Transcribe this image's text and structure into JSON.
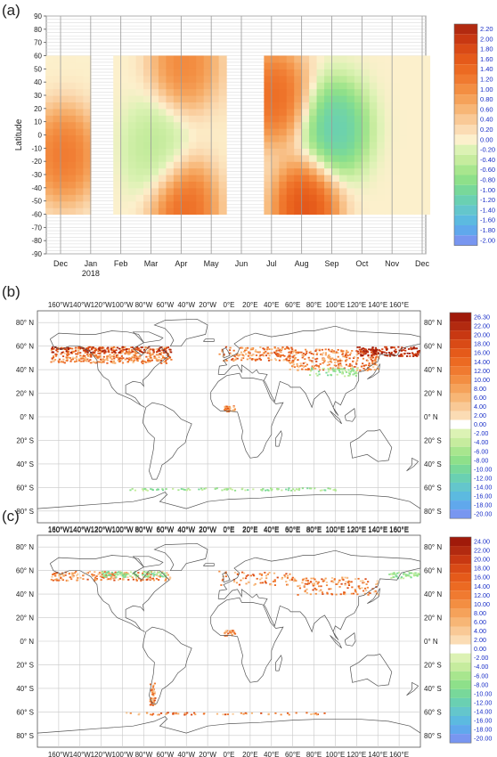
{
  "figure": {
    "panels": [
      {
        "label": "(a)"
      },
      {
        "label": "(b)"
      },
      {
        "label": "(c)"
      }
    ]
  },
  "chart_data": [
    {
      "type": "heatmap",
      "panel": "(a)",
      "ylabel": "Latitude",
      "xlabel": "",
      "x_ticks": [
        "Dec",
        "Jan",
        "Feb",
        "Mar",
        "Apr",
        "May",
        "Jun",
        "Jul",
        "Aug",
        "Sep",
        "Oct",
        "Nov",
        "Dec"
      ],
      "x_year_label": "2018",
      "y_ticks": [
        90,
        80,
        70,
        60,
        50,
        40,
        30,
        20,
        10,
        0,
        -10,
        -20,
        -30,
        -40,
        -50,
        -60,
        -70,
        -80,
        -90
      ],
      "ylim": [
        -90,
        90
      ],
      "data_lat_range": [
        -60,
        60
      ],
      "no_data_months": [
        "Jun"
      ],
      "colorbar": {
        "labels": [
          "2.20",
          "2.00",
          "1.80",
          "1.60",
          "1.40",
          "1.20",
          "1.00",
          "0.80",
          "0.60",
          "0.40",
          "0.20",
          "0.00",
          "-0.20",
          "-0.40",
          "-0.60",
          "-0.80",
          "-1.00",
          "-1.20",
          "-1.40",
          "-1.60",
          "-1.80",
          "-2.00"
        ],
        "colors": [
          "#b22a10",
          "#c83812",
          "#d94a16",
          "#e55a1a",
          "#ec6a22",
          "#f07a30",
          "#f38e42",
          "#f5a25a",
          "#f7b676",
          "#f9c996",
          "#fbdcb4",
          "#fcf0cc",
          "#dcf2b4",
          "#c6ec9e",
          "#a8e68e",
          "#8ee08a",
          "#78d89a",
          "#6ad0b2",
          "#64c6cc",
          "#5cbae0",
          "#60a8ec",
          "#7896f0"
        ]
      },
      "features": [
        {
          "month": "Dec",
          "lat": -15,
          "value": 1.6
        },
        {
          "month": "Jul",
          "lat": 30,
          "value": 1.8
        },
        {
          "month": "Aug",
          "lat": -55,
          "value": 2.2
        },
        {
          "month": "Sep",
          "lat": 5,
          "value": -1.6
        },
        {
          "month": "Mar",
          "lat": -10,
          "value": -0.6
        },
        {
          "month": "Apr",
          "lat": 55,
          "value": 1.4
        },
        {
          "month": "Apr",
          "lat": -55,
          "value": 1.8
        }
      ]
    },
    {
      "type": "heatmap",
      "panel": "(b)",
      "lon_ticks": [
        "160°W",
        "140°W",
        "120°W",
        "100°W",
        "80°W",
        "60°W",
        "40°W",
        "20°W",
        "0°E",
        "20°E",
        "40°E",
        "60°E",
        "80°E",
        "100°E",
        "120°E",
        "140°E",
        "160°E"
      ],
      "lat_ticks": [
        "80° N",
        "60° N",
        "40° N",
        "20° N",
        "0° N",
        "20° S",
        "40° S",
        "60° S",
        "80° S"
      ],
      "colorbar": {
        "labels": [
          "26.30",
          "22.00",
          "20.00",
          "18.00",
          "16.00",
          "14.00",
          "12.00",
          "10.00",
          "8.00",
          "6.00",
          "4.00",
          "2.00",
          "0.00",
          "-2.00",
          "-4.00",
          "-6.00",
          "-8.00",
          "-10.00",
          "-12.00",
          "-14.00",
          "-16.00",
          "-18.00",
          "-20.00"
        ],
        "colors": [
          "#a01a0a",
          "#b22a10",
          "#c83812",
          "#d94a16",
          "#e55a1a",
          "#ec6a22",
          "#f07a30",
          "#f38e42",
          "#f5a25a",
          "#f7b676",
          "#f9c996",
          "#fbdcb4",
          "#ffffff",
          "#dcf2b4",
          "#c6ec9e",
          "#a8e68e",
          "#8ee08a",
          "#78d89a",
          "#6ad0b2",
          "#64c6cc",
          "#5cbae0",
          "#60a8ec",
          "#7896f0"
        ]
      }
    },
    {
      "type": "heatmap",
      "panel": "(c)",
      "lon_ticks": [
        "160°W",
        "140°W",
        "120°W",
        "100°W",
        "80°W",
        "60°W",
        "40°W",
        "20°W",
        "0°E",
        "20°E",
        "40°E",
        "60°E",
        "80°E",
        "100°E",
        "120°E",
        "140°E",
        "160°E"
      ],
      "lat_ticks": [
        "80° N",
        "60° N",
        "40° N",
        "20° N",
        "0° N",
        "20° S",
        "40° S",
        "60° S",
        "80° S"
      ],
      "colorbar": {
        "labels": [
          "24.00",
          "22.00",
          "20.00",
          "18.00",
          "16.00",
          "14.00",
          "12.00",
          "10.00",
          "8.00",
          "6.00",
          "4.00",
          "2.00",
          "0.00",
          "-2.00",
          "-4.00",
          "-6.00",
          "-8.00",
          "-10.00",
          "-12.00",
          "-14.00",
          "-16.00",
          "-18.00",
          "-20.00"
        ],
        "colors": [
          "#a01a0a",
          "#b22a10",
          "#c83812",
          "#d94a16",
          "#e55a1a",
          "#ec6a22",
          "#f07a30",
          "#f38e42",
          "#f5a25a",
          "#f7b676",
          "#f9c996",
          "#fbdcb4",
          "#ffffff",
          "#dcf2b4",
          "#c6ec9e",
          "#a8e68e",
          "#8ee08a",
          "#78d89a",
          "#6ad0b2",
          "#64c6cc",
          "#5cbae0",
          "#60a8ec",
          "#7896f0"
        ]
      }
    }
  ]
}
